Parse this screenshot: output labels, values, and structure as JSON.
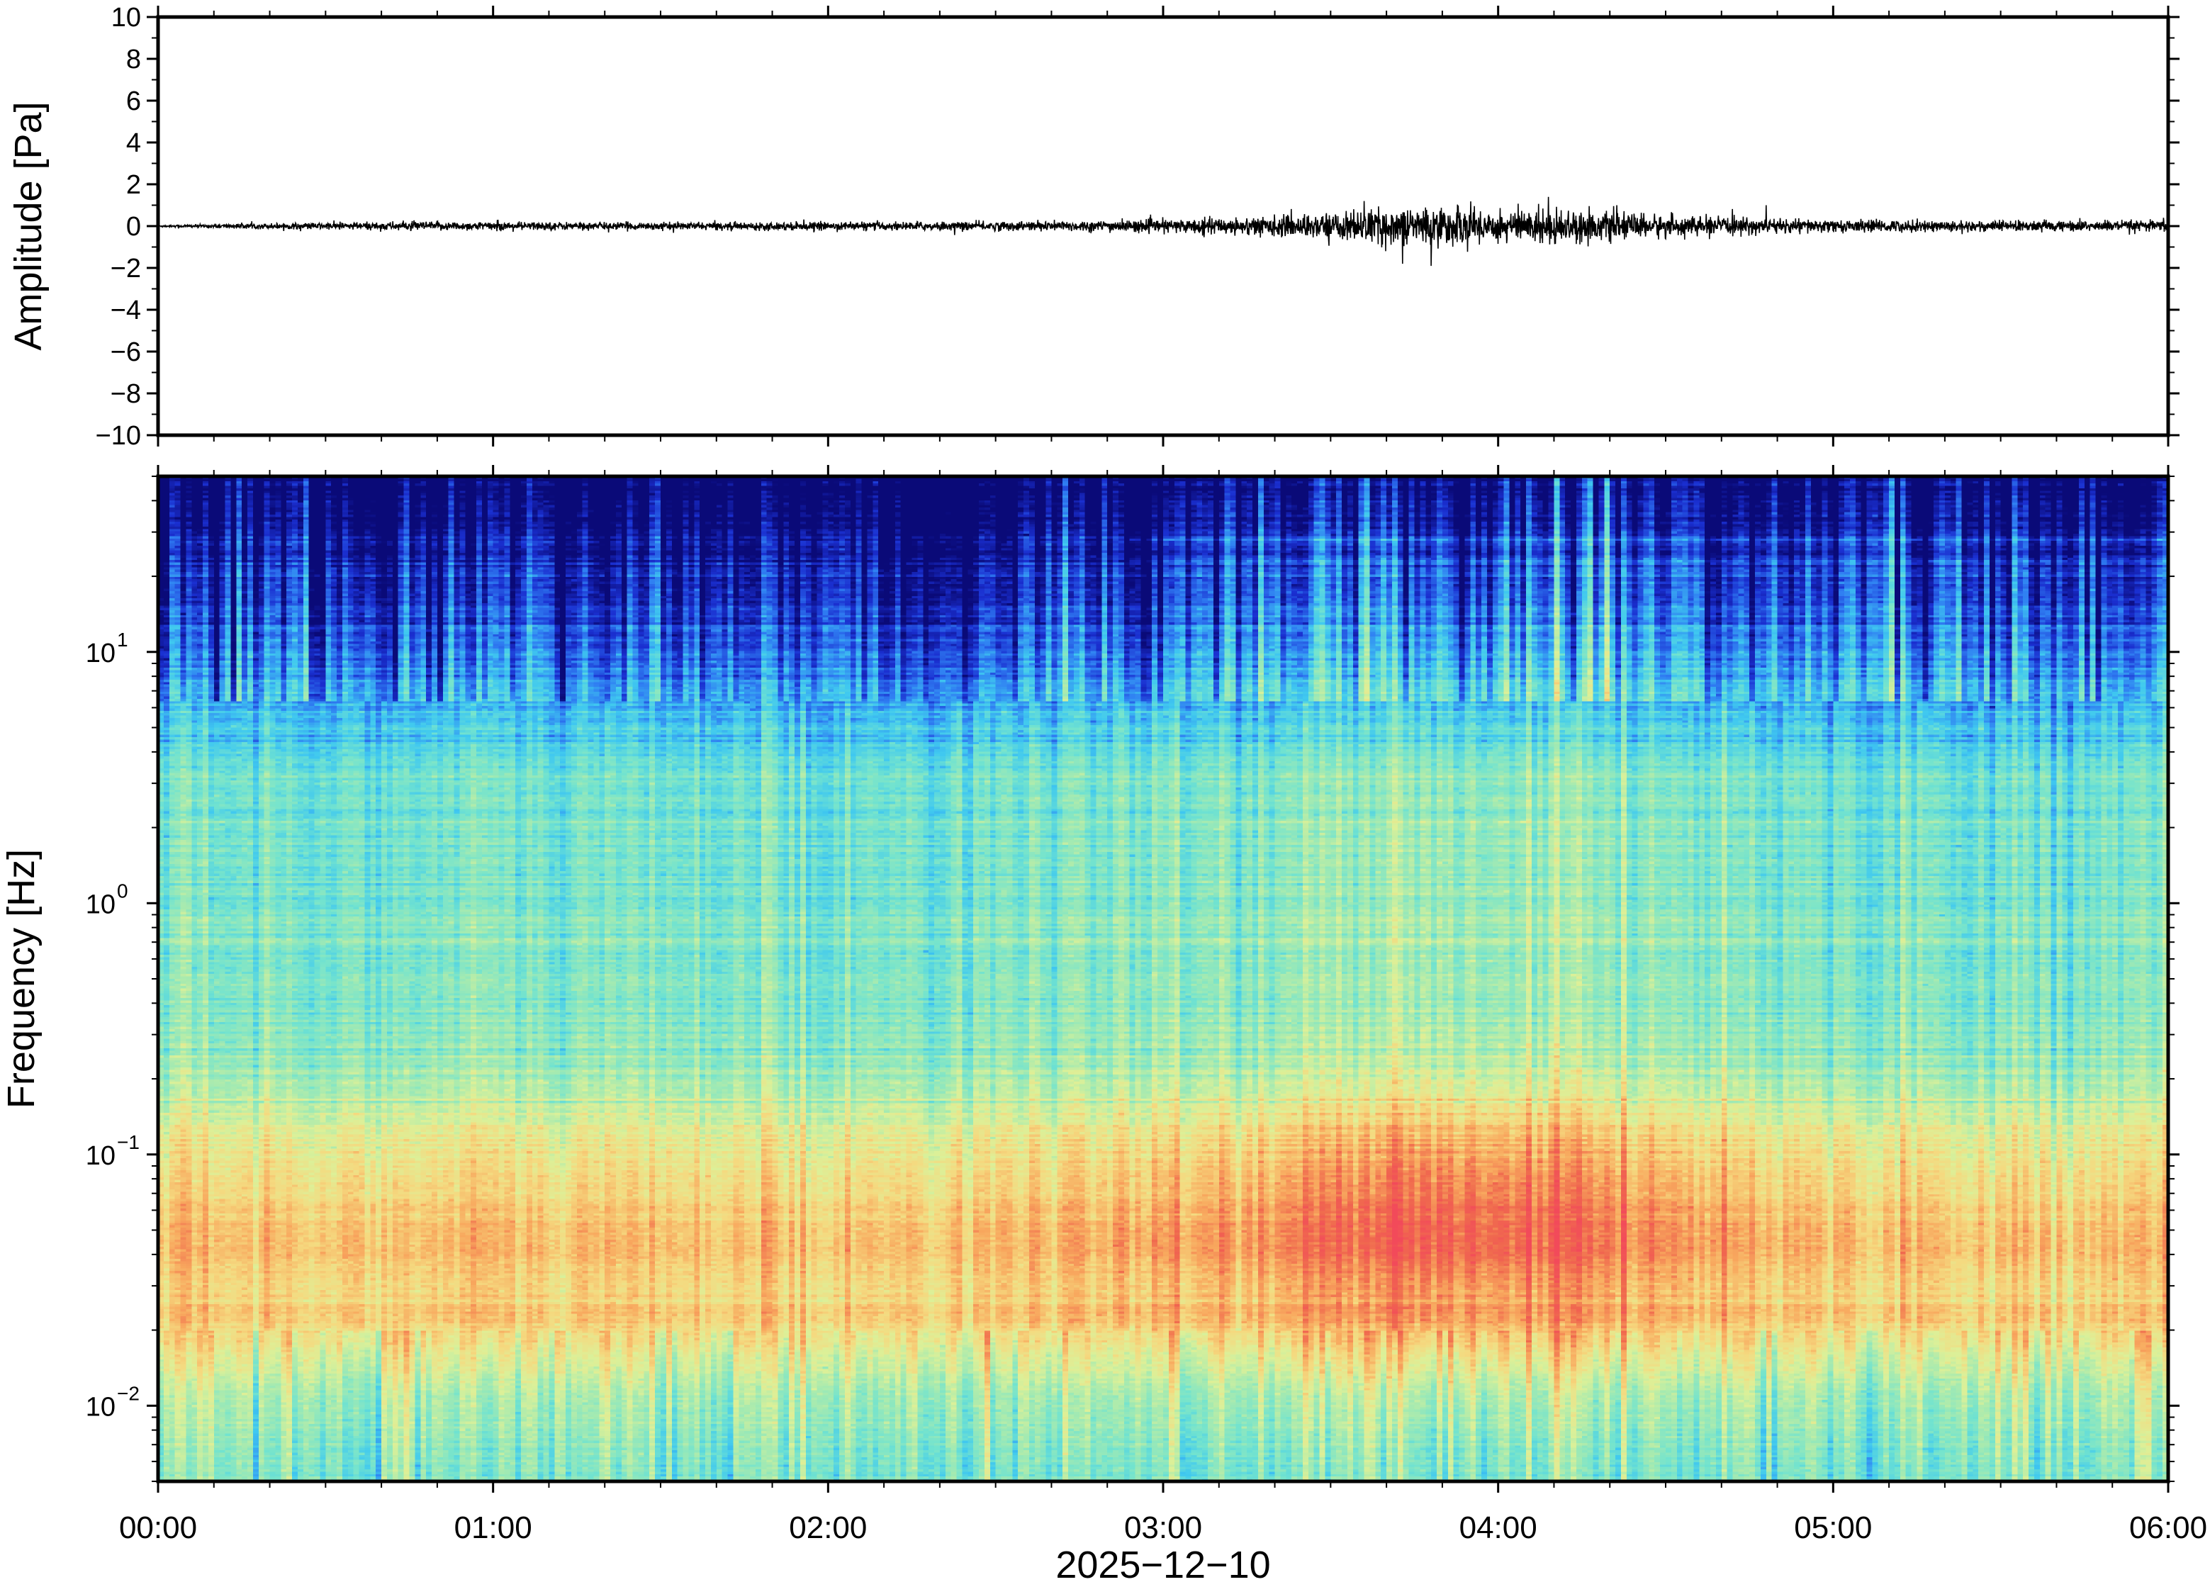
{
  "chart_data": [
    {
      "type": "line",
      "panel": "waveform",
      "ylabel": "Amplitude [Pa]",
      "ylim": [
        -10,
        10
      ],
      "yticks": [
        10,
        8,
        6,
        4,
        2,
        0,
        -2,
        -4,
        -6,
        -8,
        -10
      ],
      "yticklabels": [
        "10",
        "8",
        "6",
        "4",
        "2",
        "0",
        "−2",
        "−4",
        "−6",
        "−8",
        "−10"
      ],
      "xlim_hours": [
        0,
        6
      ],
      "line_color": "#000000",
      "envelope": {
        "description_hours": [
          0,
          0.3,
          0.8,
          1.5,
          2.5,
          3.0,
          3.4,
          3.7,
          3.85,
          4.0,
          4.15,
          4.3,
          4.6,
          5.0,
          5.5,
          6.0
        ],
        "amplitude_pa": [
          0.05,
          0.15,
          0.25,
          0.2,
          0.25,
          0.35,
          0.6,
          1.0,
          1.1,
          0.9,
          1.0,
          0.8,
          0.5,
          0.35,
          0.3,
          0.3
        ]
      },
      "peaks": [
        {
          "x_hours": 3.8,
          "y": -1.9
        },
        {
          "x_hours": 3.6,
          "y": 1.2
        },
        {
          "x_hours": 4.15,
          "y": 1.4
        },
        {
          "x_hours": 4.8,
          "y": 1.0
        }
      ]
    },
    {
      "type": "heatmap",
      "panel": "spectrogram",
      "ylabel": "Frequency [Hz]",
      "yscale": "log",
      "ylim": [
        0.005,
        50
      ],
      "yticks": [
        {
          "value": 10,
          "base": "10",
          "exp": "1"
        },
        {
          "value": 1,
          "base": "10",
          "exp": "0"
        },
        {
          "value": 0.1,
          "base": "10",
          "exp": "−1"
        },
        {
          "value": 0.01,
          "base": "10",
          "exp": "−2"
        }
      ],
      "xlabel": "2025−12−10",
      "xlim_hours": [
        0,
        6
      ],
      "xticks": [
        {
          "hours": 0,
          "label": "00:00"
        },
        {
          "hours": 1,
          "label": "01:00"
        },
        {
          "hours": 2,
          "label": "02:00"
        },
        {
          "hours": 3,
          "label": "03:00"
        },
        {
          "hours": 4,
          "label": "04:00"
        },
        {
          "hours": 5,
          "label": "05:00"
        },
        {
          "hours": 6,
          "label": "06:00"
        }
      ],
      "colormap": [
        "#0a0a78",
        "#1a2fd0",
        "#2f7df2",
        "#3fc8f0",
        "#72e3cf",
        "#a6eab0",
        "#dcf098",
        "#f5d97f",
        "#f8a85e",
        "#f06a4e",
        "#f24a5a"
      ],
      "colormap_range": [
        0,
        1
      ],
      "event": {
        "start_hours": 3.1,
        "peak_hours": 3.9,
        "end_hours": 4.7,
        "peak_freq_hz": 0.06
      },
      "line_features_hz": [
        28,
        23
      ]
    }
  ]
}
